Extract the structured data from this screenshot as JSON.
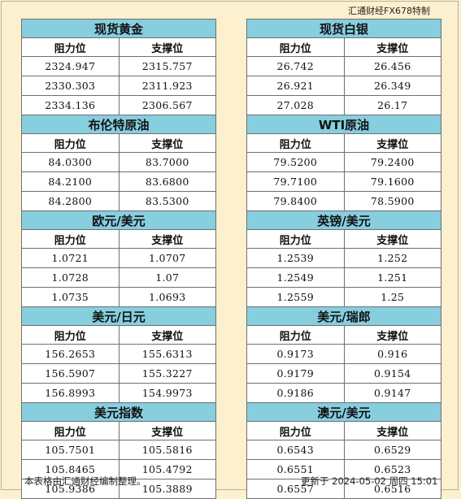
{
  "brand": "汇通财经FX678特制",
  "column_headers": {
    "resistance": "阻力位",
    "support": "支撑位"
  },
  "left_sections": [
    {
      "title": "现货黄金",
      "rows": [
        [
          "2324.947",
          "2315.757"
        ],
        [
          "2330.303",
          "2311.923"
        ],
        [
          "2334.136",
          "2306.567"
        ]
      ]
    },
    {
      "title": "布伦特原油",
      "rows": [
        [
          "84.0300",
          "83.7000"
        ],
        [
          "84.2100",
          "83.6800"
        ],
        [
          "84.2800",
          "83.5300"
        ]
      ]
    },
    {
      "title": "欧元/美元",
      "rows": [
        [
          "1.0721",
          "1.0707"
        ],
        [
          "1.0728",
          "1.07"
        ],
        [
          "1.0735",
          "1.0693"
        ]
      ]
    },
    {
      "title": "美元/日元",
      "rows": [
        [
          "156.2653",
          "155.6313"
        ],
        [
          "156.5907",
          "155.3227"
        ],
        [
          "156.8993",
          "154.9973"
        ]
      ]
    },
    {
      "title": "美元指数",
      "rows": [
        [
          "105.7501",
          "105.5816"
        ],
        [
          "105.8465",
          "105.4792"
        ],
        [
          "105.9386",
          "105.3889"
        ]
      ]
    }
  ],
  "right_sections": [
    {
      "title": "现货白银",
      "rows": [
        [
          "26.742",
          "26.456"
        ],
        [
          "26.921",
          "26.349"
        ],
        [
          "27.028",
          "26.17"
        ]
      ]
    },
    {
      "title": "WTI原油",
      "rows": [
        [
          "79.5200",
          "79.2400"
        ],
        [
          "79.7100",
          "79.1600"
        ],
        [
          "79.8400",
          "78.5900"
        ]
      ]
    },
    {
      "title": "英镑/美元",
      "rows": [
        [
          "1.2539",
          "1.252"
        ],
        [
          "1.2549",
          "1.251"
        ],
        [
          "1.2559",
          "1.25"
        ]
      ]
    },
    {
      "title": "美元/瑞郎",
      "rows": [
        [
          "0.9173",
          "0.916"
        ],
        [
          "0.9179",
          "0.9154"
        ],
        [
          "0.9186",
          "0.9147"
        ]
      ]
    },
    {
      "title": "澳元/美元",
      "rows": [
        [
          "0.6543",
          "0.6529"
        ],
        [
          "0.6551",
          "0.6523"
        ],
        [
          "0.6557",
          "0.6516"
        ]
      ]
    }
  ],
  "footer": {
    "note": "本表格由汇通财经编制整理。",
    "updated": "更新于 2024-05-02 周四 15:01"
  }
}
